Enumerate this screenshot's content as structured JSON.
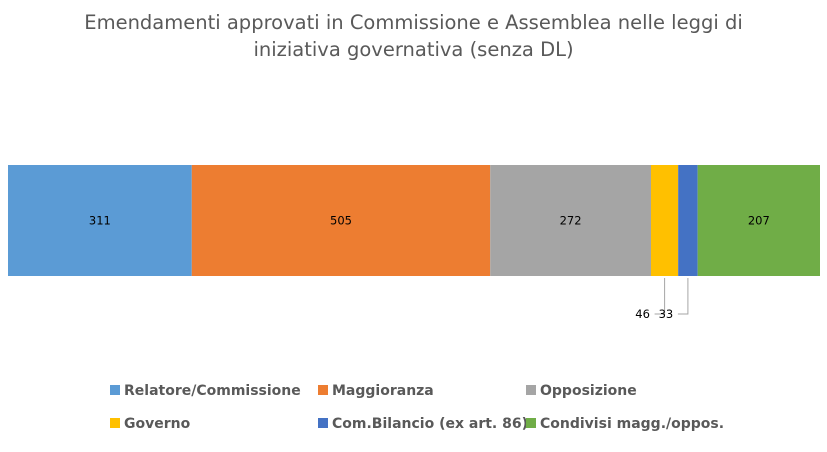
{
  "chart_data": {
    "type": "bar",
    "orientation": "horizontal-stacked",
    "title": "Emendamenti approvati in Commissione e Assemblea nelle leggi di iniziativa governativa (senza DL)",
    "title_lines": [
      "Emendamenti approvati in Commissione e Assemblea nelle leggi di",
      "iniziativa governativa (senza DL)"
    ],
    "categories": [
      ""
    ],
    "series": [
      {
        "name": "Relatore/Commissione",
        "values": [
          311
        ],
        "color": "#5B9BD5"
      },
      {
        "name": "Maggioranza",
        "values": [
          505
        ],
        "color": "#ED7D31"
      },
      {
        "name": "Opposizione",
        "values": [
          272
        ],
        "color": "#A5A5A5"
      },
      {
        "name": "Governo",
        "values": [
          46
        ],
        "color": "#FFC000"
      },
      {
        "name": "Com.Bilancio (ex art. 86)",
        "values": [
          33
        ],
        "color": "#4472C4"
      },
      {
        "name": "Condivisi magg./oppos.",
        "values": [
          207
        ],
        "color": "#70AD47"
      }
    ],
    "xlim": [
      0,
      1374
    ],
    "grid": false,
    "legend_position": "bottom"
  }
}
